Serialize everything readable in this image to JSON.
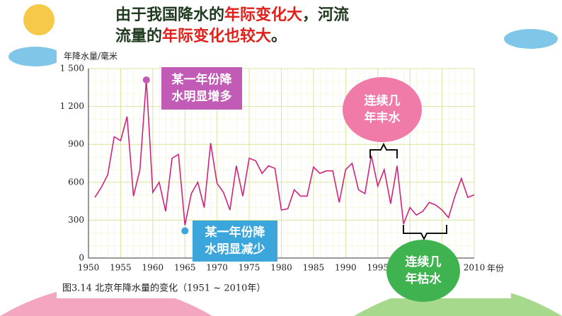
{
  "header": {
    "line1": [
      "由于我国降水的",
      "年际变化大",
      "，河流"
    ],
    "line2": [
      "流量的",
      "年际变化也较大",
      "。"
    ]
  },
  "chart_data": {
    "type": "line",
    "y_label": "年降水量/毫米",
    "x_label": "年份",
    "caption": "图3.14 北京年降水量的变化（1951 ~ 2010年）",
    "x": [
      1951,
      1952,
      1953,
      1954,
      1955,
      1956,
      1957,
      1958,
      1959,
      1960,
      1961,
      1962,
      1963,
      1964,
      1965,
      1966,
      1967,
      1968,
      1969,
      1970,
      1971,
      1972,
      1973,
      1974,
      1975,
      1976,
      1977,
      1978,
      1979,
      1980,
      1981,
      1982,
      1983,
      1984,
      1985,
      1986,
      1987,
      1988,
      1989,
      1990,
      1991,
      1992,
      1993,
      1994,
      1995,
      1996,
      1997,
      1998,
      1999,
      2000,
      2001,
      2002,
      2003,
      2004,
      2005,
      2006,
      2007,
      2008,
      2009,
      2010
    ],
    "series": [
      {
        "name": "北京年降水量",
        "color": "#d0237f",
        "values": [
          480,
          560,
          660,
          960,
          930,
          1120,
          490,
          700,
          1410,
          520,
          600,
          370,
          790,
          820,
          260,
          510,
          600,
          400,
          910,
          590,
          520,
          380,
          730,
          490,
          790,
          770,
          670,
          730,
          710,
          380,
          390,
          540,
          490,
          490,
          720,
          670,
          690,
          690,
          440,
          700,
          750,
          540,
          510,
          810,
          570,
          700,
          430,
          730,
          270,
          400,
          340,
          370,
          440,
          420,
          380,
          320,
          490,
          630,
          480,
          500
        ]
      }
    ],
    "xlim": [
      1950,
      2010
    ],
    "xticks": [
      1950,
      1955,
      1960,
      1965,
      1970,
      1975,
      1980,
      1985,
      1990,
      1995,
      2000,
      2005,
      2010
    ],
    "ylim": [
      0,
      1500
    ],
    "yticks": [
      0,
      300,
      600,
      900,
      {
        "value": 1200,
        "label": "1 200"
      },
      {
        "value": 1500,
        "label": "1 500"
      }
    ],
    "grid": true,
    "annotations": [
      {
        "lines": [
          "某一年份降",
          "水明显增多"
        ],
        "color": "#c25bb5"
      },
      {
        "lines": [
          "某一年份降",
          "水明显减少"
        ],
        "color": "#3aa6dc"
      },
      {
        "lines": [
          "连续几",
          "年丰水"
        ],
        "color": "#f07aa8"
      },
      {
        "lines": [
          "连续几",
          "年枯水"
        ],
        "color": "#3fb34f"
      }
    ]
  }
}
